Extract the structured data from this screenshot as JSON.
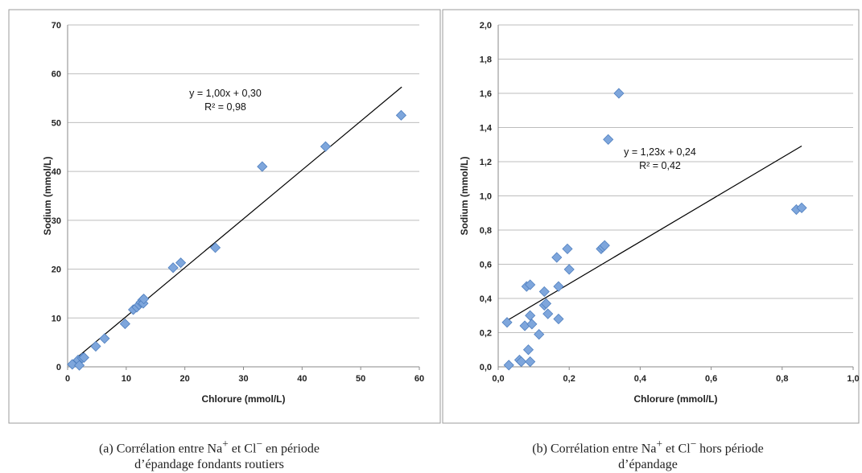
{
  "chart_data": [
    {
      "type": "scatter",
      "xlabel": "Chlorure (mmol/L)",
      "ylabel": "Sodium (mmol/L)",
      "xlim": [
        0,
        60
      ],
      "ylim": [
        0,
        70
      ],
      "xticks": [
        "0",
        "10",
        "20",
        "30",
        "40",
        "50",
        "60"
      ],
      "yticks": [
        "0",
        "10",
        "20",
        "30",
        "40",
        "50",
        "60",
        "70"
      ],
      "grid": "horizontal",
      "trendline": {
        "slope": 1.0,
        "intercept": 0.3,
        "x_from": 1.0,
        "x_to": 57
      },
      "equation": "y = 1,00x + 0,30",
      "r2": "R² = 0,98",
      "points": [
        [
          0.8,
          0.5
        ],
        [
          1.8,
          1.4
        ],
        [
          2.0,
          0.3
        ],
        [
          2.5,
          1.8
        ],
        [
          2.8,
          1.9
        ],
        [
          4.8,
          4.2
        ],
        [
          6.3,
          5.8
        ],
        [
          9.8,
          8.8
        ],
        [
          11.2,
          11.7
        ],
        [
          11.8,
          12.2
        ],
        [
          12.2,
          12.7
        ],
        [
          12.5,
          13.2
        ],
        [
          12.8,
          13.7
        ],
        [
          12.9,
          13.0
        ],
        [
          13.0,
          13.9
        ],
        [
          18.0,
          20.3
        ],
        [
          19.3,
          21.3
        ],
        [
          25.2,
          24.4
        ],
        [
          33.2,
          41.0
        ],
        [
          44.0,
          45.1
        ],
        [
          56.9,
          51.5
        ]
      ],
      "caption_lines": [
        "(a) Corrélation entre Na",
        "+",
        " et Cl",
        "−",
        " en période",
        "d’épandage fondants routiers"
      ]
    },
    {
      "type": "scatter",
      "xlabel": "Chlorure (mmol/L)",
      "ylabel": "Sodium (mmol/L)",
      "xlim": [
        0,
        1.0
      ],
      "ylim": [
        0,
        2.0
      ],
      "xticks": [
        "0,0",
        "0,2",
        "0,4",
        "0,6",
        "0,8",
        "1,0"
      ],
      "yticks": [
        "0,0",
        "0,2",
        "0,4",
        "0,6",
        "0,8",
        "1,0",
        "1,2",
        "1,4",
        "1,6",
        "1,8",
        "2,0"
      ],
      "grid": "horizontal",
      "trendline": {
        "slope": 1.23,
        "intercept": 0.24,
        "x_from": 0.03,
        "x_to": 0.855
      },
      "equation": "y = 1,23x + 0,24",
      "r2": "R² = 0,42",
      "points": [
        [
          0.025,
          0.26
        ],
        [
          0.03,
          0.01
        ],
        [
          0.06,
          0.04
        ],
        [
          0.065,
          0.03
        ],
        [
          0.075,
          0.24
        ],
        [
          0.08,
          0.47
        ],
        [
          0.085,
          0.1
        ],
        [
          0.09,
          0.48
        ],
        [
          0.09,
          0.03
        ],
        [
          0.09,
          0.3
        ],
        [
          0.095,
          0.25
        ],
        [
          0.115,
          0.19
        ],
        [
          0.13,
          0.44
        ],
        [
          0.13,
          0.36
        ],
        [
          0.135,
          0.37
        ],
        [
          0.14,
          0.31
        ],
        [
          0.165,
          0.64
        ],
        [
          0.17,
          0.47
        ],
        [
          0.17,
          0.28
        ],
        [
          0.195,
          0.69
        ],
        [
          0.2,
          0.57
        ],
        [
          0.29,
          0.69
        ],
        [
          0.295,
          0.7
        ],
        [
          0.3,
          0.71
        ],
        [
          0.31,
          1.33
        ],
        [
          0.34,
          1.6
        ],
        [
          0.84,
          0.92
        ],
        [
          0.855,
          0.93
        ]
      ],
      "caption_lines": [
        "(b) Corrélation entre Na",
        "+",
        " et Cl",
        "−",
        " hors période",
        "d’épandage"
      ]
    }
  ]
}
